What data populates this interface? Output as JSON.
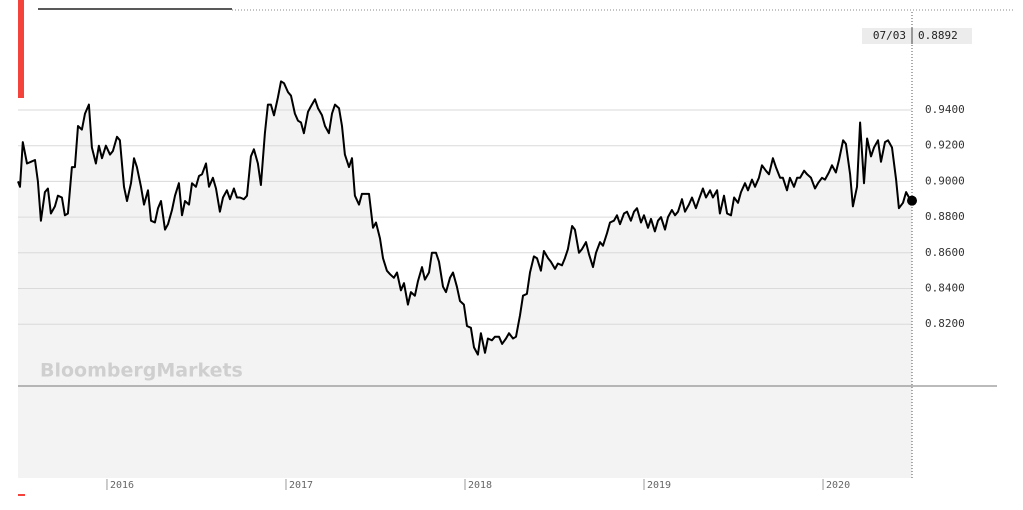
{
  "chart_data": {
    "type": "line",
    "watermark": "BloombergMarkets",
    "annotation": "07/03",
    "color": "#000000",
    "x": [
      2015.503,
      2015.514,
      2015.53,
      2015.553,
      2015.575,
      2015.598,
      2015.614,
      2015.631,
      2015.653,
      2015.67,
      2015.687,
      2015.709,
      2015.726,
      2015.748,
      2015.765,
      2015.782,
      2015.804,
      2015.821,
      2015.838,
      2015.86,
      2015.877,
      2015.899,
      2015.916,
      2015.938,
      2015.955,
      2015.972,
      2015.994,
      2016.017,
      2016.033,
      2016.056,
      2016.072,
      2016.095,
      2016.112,
      2016.134,
      2016.151,
      2016.167,
      2016.19,
      2016.207,
      2016.229,
      2016.246,
      2016.268,
      2016.285,
      2016.302,
      2016.324,
      2016.341,
      2016.363,
      2016.38,
      2016.402,
      2016.419,
      2016.436,
      2016.458,
      2016.475,
      2016.497,
      2016.514,
      2016.531,
      2016.553,
      2016.57,
      2016.592,
      2016.609,
      2016.631,
      2016.648,
      2016.67,
      2016.687,
      2016.709,
      2016.726,
      2016.743,
      2016.765,
      2016.782,
      2016.804,
      2016.821,
      2016.843,
      2016.86,
      2016.882,
      2016.899,
      2016.916,
      2016.933,
      2016.955,
      2016.972,
      2016.989,
      2017.011,
      2017.028,
      2017.05,
      2017.067,
      2017.084,
      2017.1,
      2017.123,
      2017.139,
      2017.162,
      2017.179,
      2017.201,
      2017.218,
      2017.24,
      2017.257,
      2017.274,
      2017.296,
      2017.313,
      2017.329,
      2017.352,
      2017.369,
      2017.385,
      2017.408,
      2017.424,
      2017.447,
      2017.464,
      2017.486,
      2017.503,
      2017.525,
      2017.542,
      2017.564,
      2017.581,
      2017.603,
      2017.62,
      2017.642,
      2017.659,
      2017.681,
      2017.698,
      2017.72,
      2017.737,
      2017.76,
      2017.776,
      2017.799,
      2017.815,
      2017.838,
      2017.855,
      2017.877,
      2017.894,
      2017.916,
      2017.933,
      2017.955,
      2017.972,
      2017.994,
      2018.011,
      2018.033,
      2018.05,
      2018.072,
      2018.089,
      2018.112,
      2018.128,
      2018.151,
      2018.167,
      2018.19,
      2018.207,
      2018.229,
      2018.246,
      2018.268,
      2018.285,
      2018.307,
      2018.324,
      2018.346,
      2018.363,
      2018.385,
      2018.402,
      2018.424,
      2018.441,
      2018.464,
      2018.48,
      2018.503,
      2018.519,
      2018.542,
      2018.558,
      2018.575,
      2018.598,
      2018.614,
      2018.637,
      2018.653,
      2018.676,
      2018.693,
      2018.715,
      2018.732,
      2018.754,
      2018.771,
      2018.793,
      2018.81,
      2018.832,
      2018.849,
      2018.866,
      2018.888,
      2018.905,
      2018.927,
      2018.944,
      2018.961,
      2018.983,
      2019.0,
      2019.022,
      2019.039,
      2019.061,
      2019.078,
      2019.095,
      2019.117,
      2019.134,
      2019.156,
      2019.173,
      2019.19,
      2019.212,
      2019.229,
      2019.251,
      2019.268,
      2019.29,
      2019.307,
      2019.329,
      2019.346,
      2019.369,
      2019.385,
      2019.408,
      2019.424,
      2019.447,
      2019.464,
      2019.486,
      2019.503,
      2019.525,
      2019.542,
      2019.564,
      2019.581,
      2019.603,
      2019.62,
      2019.642,
      2019.659,
      2019.681,
      2019.698,
      2019.72,
      2019.737,
      2019.76,
      2019.776,
      2019.799,
      2019.815,
      2019.838,
      2019.855,
      2019.872,
      2019.894,
      2019.911,
      2019.933,
      2019.955,
      2019.972,
      2019.994,
      2020.011,
      2020.033,
      2020.05,
      2020.072,
      2020.089,
      2020.112,
      2020.128,
      2020.151,
      2020.167,
      2020.19,
      2020.207,
      2020.229,
      2020.246,
      2020.268,
      2020.285,
      2020.307,
      2020.324,
      2020.346,
      2020.363,
      2020.385,
      2020.408,
      2020.424,
      2020.447,
      2020.464,
      2020.48,
      2020.497
    ],
    "values": [
      0.9,
      0.897,
      0.922,
      0.91,
      0.911,
      0.912,
      0.9,
      0.878,
      0.894,
      0.896,
      0.882,
      0.886,
      0.892,
      0.891,
      0.881,
      0.882,
      0.908,
      0.908,
      0.931,
      0.929,
      0.938,
      0.943,
      0.919,
      0.91,
      0.92,
      0.913,
      0.92,
      0.915,
      0.917,
      0.925,
      0.923,
      0.897,
      0.889,
      0.899,
      0.913,
      0.908,
      0.897,
      0.887,
      0.895,
      0.878,
      0.877,
      0.885,
      0.889,
      0.873,
      0.876,
      0.884,
      0.892,
      0.899,
      0.881,
      0.889,
      0.887,
      0.899,
      0.897,
      0.903,
      0.904,
      0.91,
      0.897,
      0.902,
      0.896,
      0.883,
      0.891,
      0.895,
      0.89,
      0.896,
      0.891,
      0.891,
      0.89,
      0.892,
      0.914,
      0.918,
      0.91,
      0.898,
      0.927,
      0.943,
      0.943,
      0.937,
      0.947,
      0.956,
      0.955,
      0.95,
      0.948,
      0.938,
      0.934,
      0.933,
      0.927,
      0.939,
      0.942,
      0.946,
      0.941,
      0.937,
      0.931,
      0.927,
      0.938,
      0.943,
      0.941,
      0.931,
      0.915,
      0.908,
      0.913,
      0.892,
      0.887,
      0.893,
      0.893,
      0.893,
      0.874,
      0.877,
      0.868,
      0.857,
      0.85,
      0.848,
      0.846,
      0.849,
      0.839,
      0.843,
      0.831,
      0.838,
      0.836,
      0.844,
      0.852,
      0.845,
      0.849,
      0.86,
      0.86,
      0.855,
      0.841,
      0.838,
      0.846,
      0.849,
      0.841,
      0.833,
      0.831,
      0.819,
      0.818,
      0.807,
      0.803,
      0.815,
      0.804,
      0.812,
      0.811,
      0.813,
      0.813,
      0.809,
      0.812,
      0.815,
      0.812,
      0.813,
      0.825,
      0.836,
      0.837,
      0.849,
      0.858,
      0.857,
      0.85,
      0.861,
      0.857,
      0.855,
      0.851,
      0.854,
      0.853,
      0.857,
      0.862,
      0.875,
      0.873,
      0.86,
      0.862,
      0.866,
      0.859,
      0.852,
      0.86,
      0.866,
      0.864,
      0.871,
      0.877,
      0.878,
      0.881,
      0.876,
      0.882,
      0.883,
      0.878,
      0.883,
      0.885,
      0.877,
      0.881,
      0.874,
      0.879,
      0.872,
      0.878,
      0.88,
      0.873,
      0.88,
      0.884,
      0.881,
      0.883,
      0.89,
      0.883,
      0.887,
      0.891,
      0.885,
      0.89,
      0.896,
      0.891,
      0.895,
      0.891,
      0.895,
      0.882,
      0.892,
      0.882,
      0.881,
      0.891,
      0.888,
      0.894,
      0.899,
      0.895,
      0.901,
      0.897,
      0.902,
      0.909,
      0.906,
      0.904,
      0.913,
      0.908,
      0.902,
      0.902,
      0.895,
      0.902,
      0.897,
      0.902,
      0.902,
      0.906,
      0.904,
      0.902,
      0.896,
      0.899,
      0.902,
      0.901,
      0.905,
      0.909,
      0.905,
      0.912,
      0.923,
      0.921,
      0.904,
      0.886,
      0.897,
      0.933,
      0.899,
      0.924,
      0.914,
      0.919,
      0.923,
      0.911,
      0.922,
      0.923,
      0.919,
      0.901,
      0.885,
      0.888,
      0.894,
      0.891,
      0.8892
    ],
    "xlim": [
      2015.503,
      2020.497
    ],
    "ylim": [
      0.7854,
      0.996
    ],
    "xticks": [
      2016,
      2017,
      2018,
      2019,
      2020
    ],
    "yticks": [
      {
        "value": 0.82,
        "label": "0.8200"
      },
      {
        "value": 0.84,
        "label": "0.8400"
      },
      {
        "value": 0.86,
        "label": "0.8600"
      },
      {
        "value": 0.88,
        "label": "0.8800"
      },
      {
        "value": 0.9,
        "label": "0.9000"
      },
      {
        "value": 0.92,
        "label": "0.9200"
      },
      {
        "value": 0.94,
        "label": "0.9400"
      }
    ],
    "grid": true
  }
}
